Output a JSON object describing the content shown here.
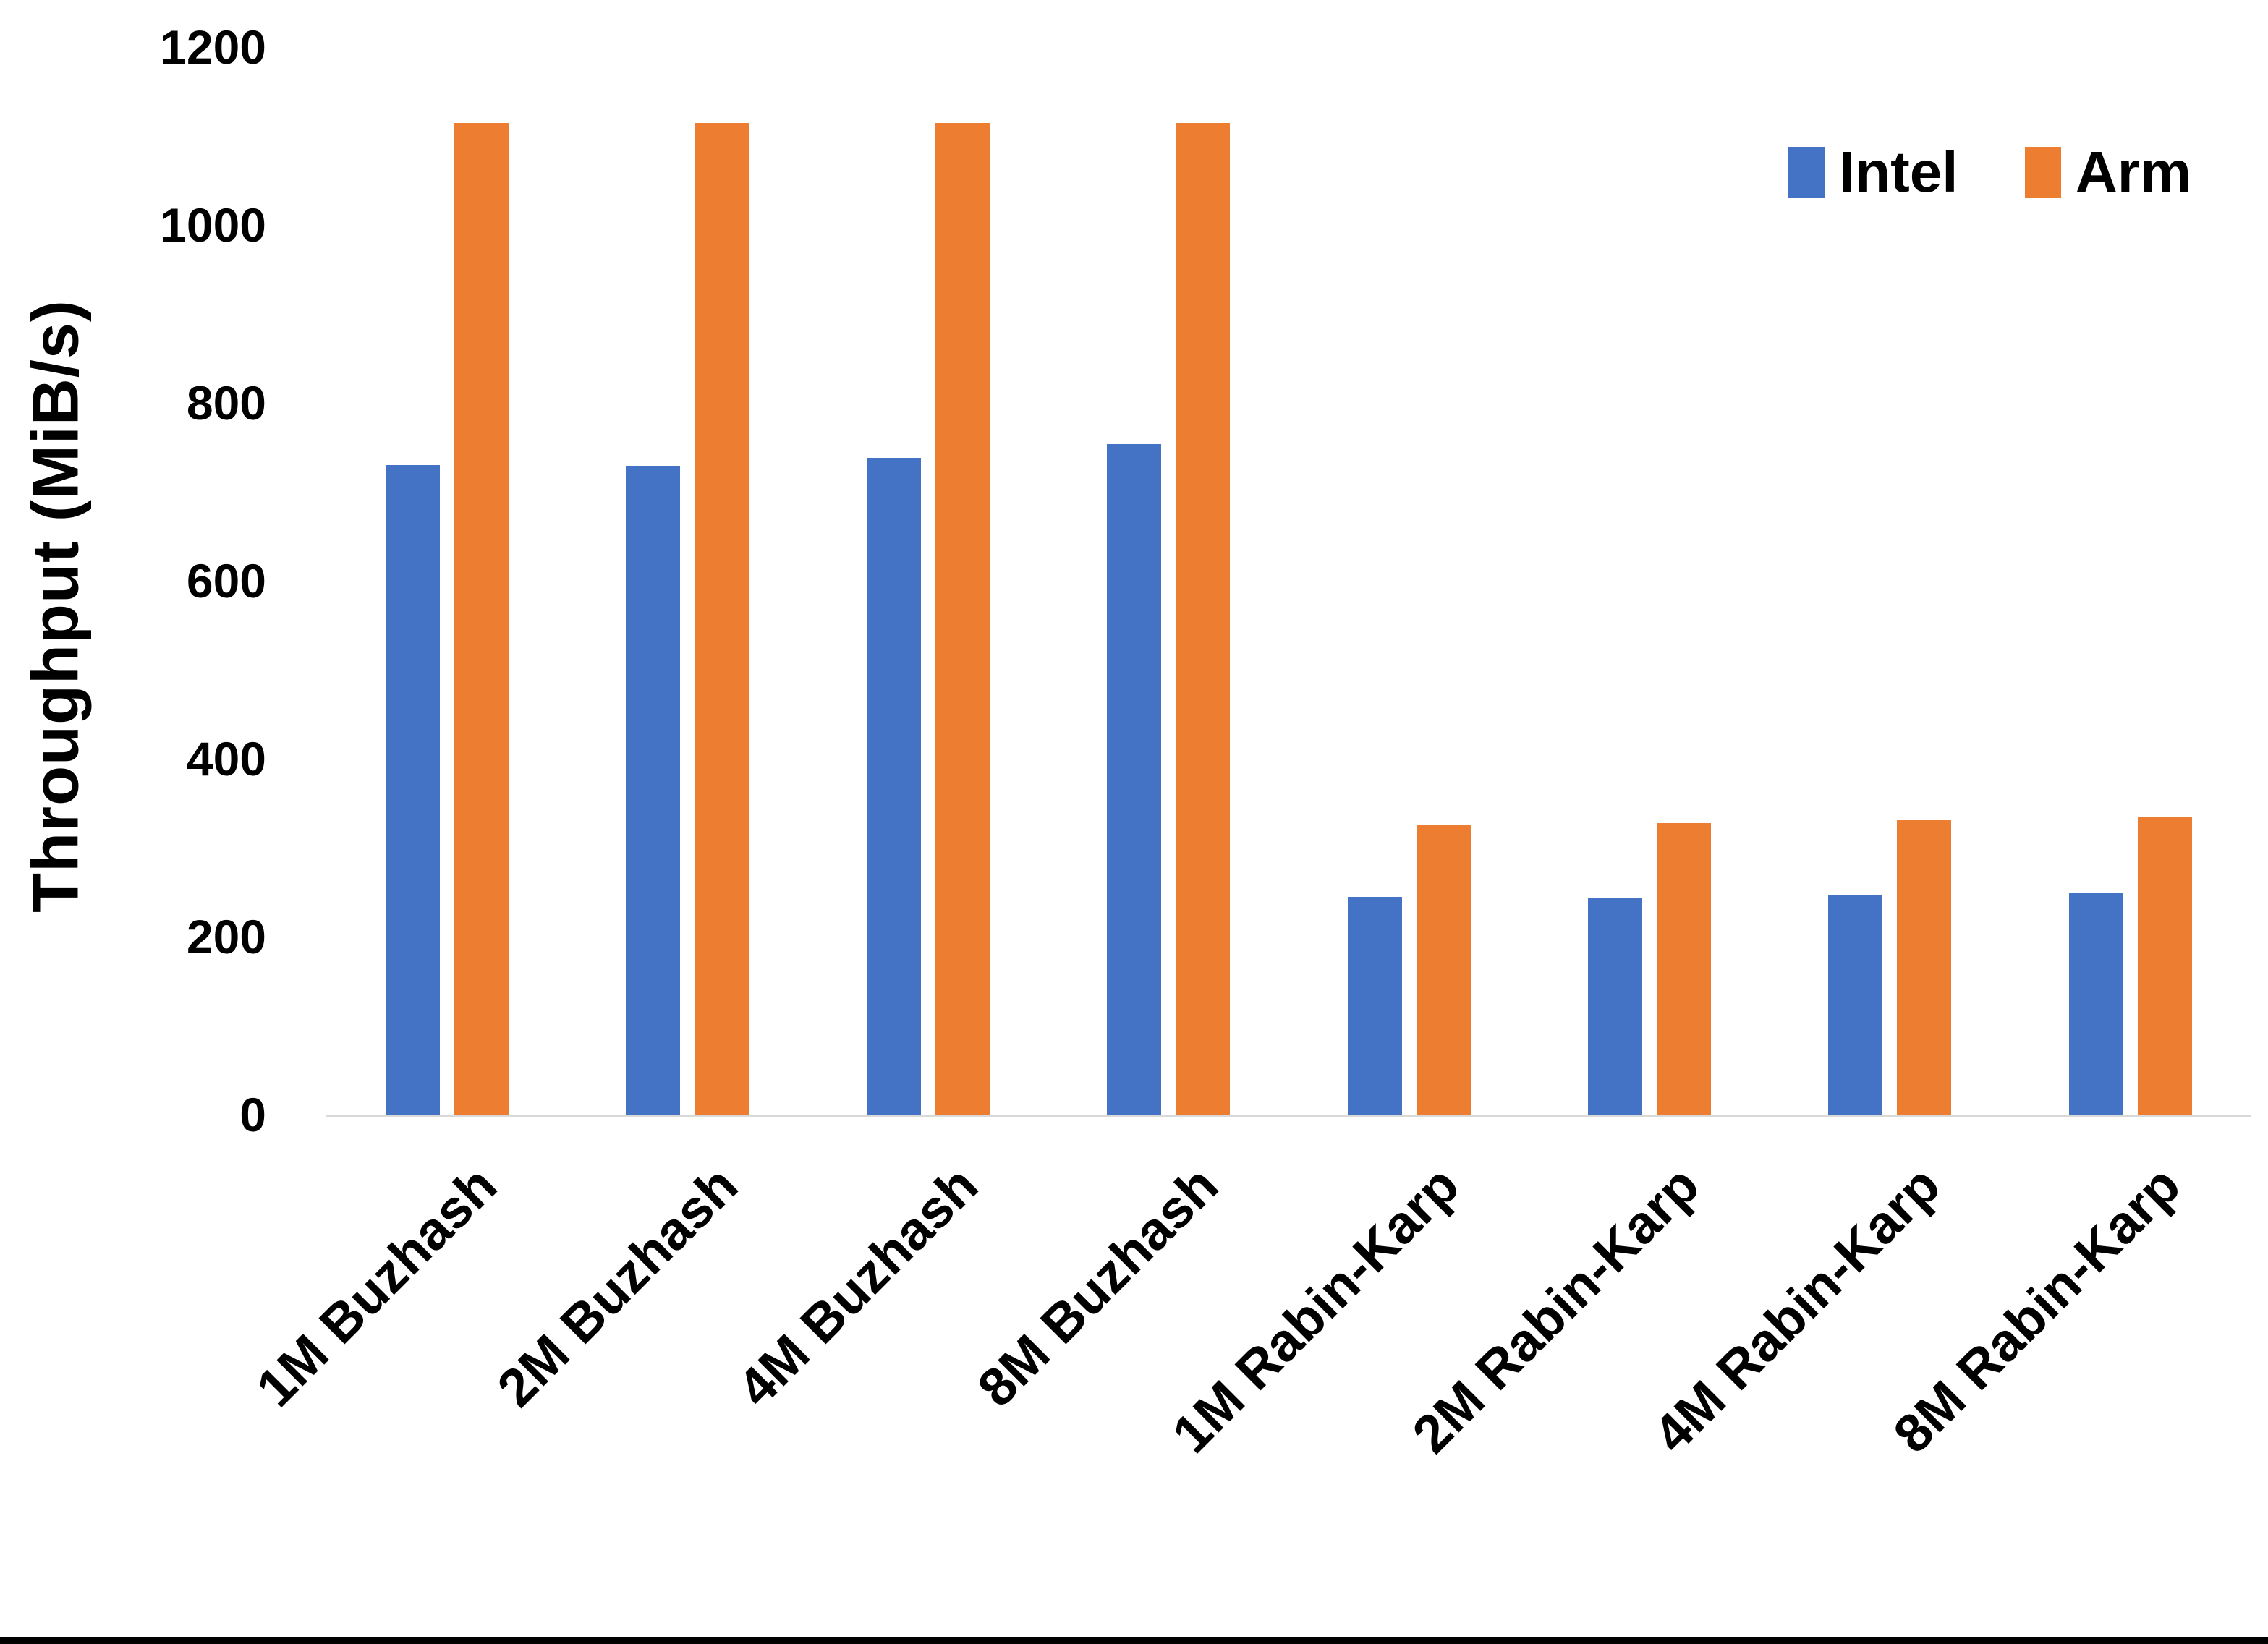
{
  "chart_data": {
    "type": "bar",
    "title": "",
    "categories": [
      "1M Buzhash",
      "2M Buzhash",
      "4M Buzhash",
      "8M Buzhash",
      "1M Rabin-Karp",
      "2M Rabin-Karp",
      "4M Rabin-Karp",
      "8M Rabin-Karp"
    ],
    "series": [
      {
        "name": "Intel",
        "color": "#4472C4",
        "values": [
          730,
          729,
          738,
          754,
          245,
          244,
          247,
          250
        ]
      },
      {
        "name": "Arm",
        "color": "#ED7D31",
        "values": [
          1115,
          1115,
          1115,
          1115,
          325,
          328,
          331,
          334
        ]
      }
    ],
    "xlabel": "",
    "ylabel": "Throughput (MiB/s)",
    "yticks": [
      0,
      200,
      400,
      600,
      800,
      1000,
      1200
    ],
    "ylim": [
      0,
      1200
    ],
    "grid": false,
    "legend_position": "top-right"
  },
  "colors": {
    "background": "#FFFFFF",
    "text": "#000000",
    "axis_line": "#D9D9D9",
    "bottom_border": "#000000"
  }
}
